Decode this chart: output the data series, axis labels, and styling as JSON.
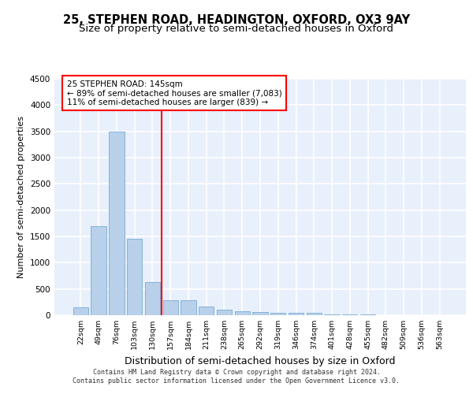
{
  "title1": "25, STEPHEN ROAD, HEADINGTON, OXFORD, OX3 9AY",
  "title2": "Size of property relative to semi-detached houses in Oxford",
  "xlabel": "Distribution of semi-detached houses by size in Oxford",
  "ylabel": "Number of semi-detached properties",
  "footnote1": "Contains HM Land Registry data © Crown copyright and database right 2024.",
  "footnote2": "Contains public sector information licensed under the Open Government Licence v3.0.",
  "bar_labels": [
    "22sqm",
    "49sqm",
    "76sqm",
    "103sqm",
    "130sqm",
    "157sqm",
    "184sqm",
    "211sqm",
    "238sqm",
    "265sqm",
    "292sqm",
    "319sqm",
    "346sqm",
    "374sqm",
    "401sqm",
    "428sqm",
    "455sqm",
    "482sqm",
    "509sqm",
    "536sqm",
    "563sqm"
  ],
  "bar_values": [
    150,
    1700,
    3500,
    1450,
    630,
    280,
    280,
    160,
    100,
    75,
    60,
    45,
    50,
    40,
    15,
    10,
    8,
    5,
    4,
    3,
    2
  ],
  "bar_color": "#b8d0ea",
  "bar_edge_color": "#7aaad0",
  "bar_width": 0.85,
  "ylim": [
    0,
    4500
  ],
  "yticks": [
    0,
    500,
    1000,
    1500,
    2000,
    2500,
    3000,
    3500,
    4000,
    4500
  ],
  "property_label": "25 STEPHEN ROAD: 145sqm",
  "ann_line1": "25 STEPHEN ROAD: 145sqm",
  "ann_line2": "← 89% of semi-detached houses are smaller (7,083)",
  "ann_line3": "11% of semi-detached houses are larger (839) →",
  "vline_bin": 5,
  "bg_color": "#e8f0fc",
  "grid_color": "#ffffff",
  "title1_fontsize": 10.5,
  "title2_fontsize": 9.5,
  "ann_fontsize": 7.5,
  "ylabel_fontsize": 8,
  "xlabel_fontsize": 9,
  "footnote_fontsize": 6
}
